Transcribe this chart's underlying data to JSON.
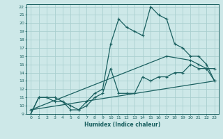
{
  "xlabel": "Humidex (Indice chaleur)",
  "xlim": [
    -0.5,
    23.5
  ],
  "ylim": [
    9,
    22.3
  ],
  "xticks": [
    0,
    1,
    2,
    3,
    4,
    5,
    6,
    7,
    8,
    9,
    10,
    11,
    12,
    13,
    14,
    15,
    16,
    17,
    18,
    19,
    20,
    21,
    22,
    23
  ],
  "yticks": [
    9,
    10,
    11,
    12,
    13,
    14,
    15,
    16,
    17,
    18,
    19,
    20,
    21,
    22
  ],
  "bg_color": "#cde8e8",
  "grid_color": "#aacfcf",
  "line_color": "#1a6060",
  "line1_x": [
    0,
    1,
    2,
    3,
    4,
    5,
    6,
    7,
    8,
    9,
    10,
    11,
    12,
    13,
    14,
    15,
    16,
    17,
    18,
    19,
    20,
    21,
    22,
    23
  ],
  "line1_y": [
    9.0,
    11.0,
    11.0,
    11.0,
    10.5,
    9.5,
    9.5,
    10.5,
    11.5,
    12.0,
    17.5,
    20.5,
    19.5,
    19.0,
    18.5,
    22.0,
    21.0,
    20.5,
    17.5,
    17.0,
    16.0,
    16.0,
    15.0,
    13.0
  ],
  "line2_x": [
    0,
    1,
    2,
    3,
    4,
    5,
    6,
    7,
    8,
    9,
    10,
    11,
    12,
    13,
    14,
    15,
    16,
    17,
    18,
    19,
    20,
    21,
    22,
    23
  ],
  "line2_y": [
    9.0,
    11.0,
    11.0,
    10.5,
    10.5,
    10.0,
    9.5,
    10.0,
    11.0,
    11.5,
    14.5,
    11.5,
    11.5,
    11.5,
    13.5,
    13.0,
    13.5,
    13.5,
    14.0,
    14.0,
    15.0,
    14.5,
    14.5,
    13.0
  ],
  "line3_x": [
    0,
    17,
    20,
    21,
    22,
    23
  ],
  "line3_y": [
    9.5,
    16.0,
    15.5,
    15.0,
    14.5,
    14.5
  ],
  "line4_x": [
    0,
    23
  ],
  "line4_y": [
    9.5,
    13.0
  ]
}
